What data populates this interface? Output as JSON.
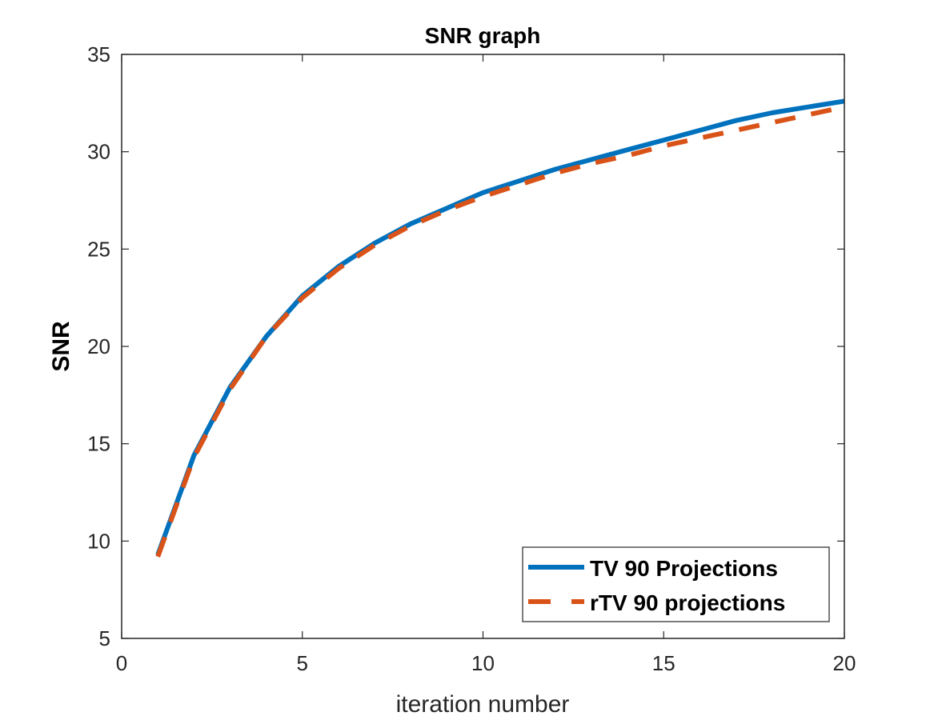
{
  "chart_data": {
    "type": "line",
    "title": "SNR graph",
    "xlabel": "iteration number",
    "ylabel": "SNR",
    "xlim": [
      0,
      20
    ],
    "ylim": [
      5,
      35
    ],
    "xticks": [
      0,
      5,
      10,
      15,
      20
    ],
    "yticks": [
      5,
      10,
      15,
      20,
      25,
      30,
      35
    ],
    "grid": false,
    "legend_position": "bottom-right",
    "x": [
      1,
      2,
      3,
      4,
      5,
      6,
      7,
      8,
      9,
      10,
      11,
      12,
      13,
      14,
      15,
      16,
      17,
      18,
      19,
      20
    ],
    "series": [
      {
        "name": "TV 90 Projections",
        "style": "solid",
        "color": "#0072BD",
        "values": [
          9.3,
          14.4,
          17.9,
          20.5,
          22.6,
          24.1,
          25.3,
          26.3,
          27.1,
          27.9,
          28.5,
          29.1,
          29.6,
          30.1,
          30.6,
          31.1,
          31.6,
          32.0,
          32.3,
          32.6
        ]
      },
      {
        "name": "rTV 90 projections",
        "style": "dashed",
        "color": "#D95319",
        "values": [
          9.2,
          14.3,
          17.8,
          20.5,
          22.5,
          24.0,
          25.2,
          26.2,
          27.0,
          27.7,
          28.3,
          28.9,
          29.4,
          29.8,
          30.3,
          30.7,
          31.1,
          31.5,
          31.9,
          32.3
        ]
      }
    ]
  }
}
